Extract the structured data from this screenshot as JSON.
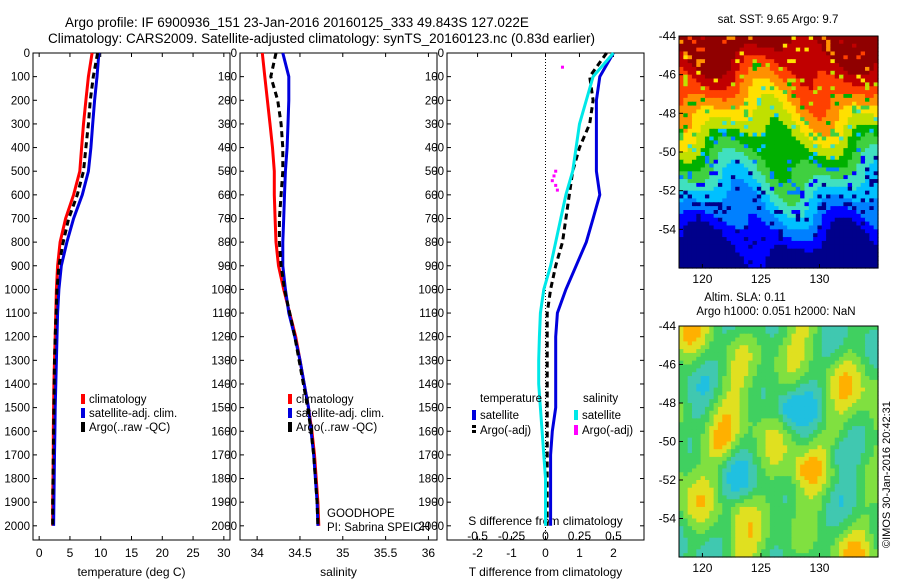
{
  "title": {
    "line1": "Argo profile: IF 6900936_151 23-Jan-2016 20160125_333 49.843S 127.022E",
    "line2": "Climatology: CARS2009. Satellite-adjusted climatology: synTS_20160123.nc (0.83d earlier)"
  },
  "colors": {
    "climatology": "#ff0000",
    "satellite": "#0000dd",
    "argo": "#000000",
    "salinity_satellite": "#00e8e8",
    "salinity_argo": "#ff00ff"
  },
  "depth_axis": {
    "ticks": [
      0,
      100,
      200,
      300,
      400,
      500,
      600,
      700,
      800,
      900,
      1000,
      1100,
      1200,
      1300,
      1400,
      1500,
      1600,
      1700,
      1800,
      1900,
      2000
    ],
    "ylim": [
      0,
      2060
    ]
  },
  "chart_data": [
    {
      "type": "line",
      "xlabel": "temperature (deg C)",
      "xlim": [
        -1,
        31
      ],
      "xticks": [
        0,
        5,
        10,
        15,
        20,
        25,
        30
      ],
      "ylim": [
        0,
        2060
      ],
      "legend": [
        "climatology",
        "satellite-adj. clim.",
        "Argo(..raw -QC)"
      ],
      "series": [
        {
          "name": "climatology",
          "color": "#ff0000",
          "dash": "",
          "x": [
            8.6,
            8.0,
            7.6,
            7.2,
            6.9,
            6.6,
            5.6,
            4.3,
            3.4,
            3.0,
            2.8,
            2.7,
            2.6,
            2.5,
            2.4,
            2.35,
            2.3,
            2.3,
            2.25,
            2.2,
            2.2
          ],
          "y": [
            0,
            100,
            200,
            300,
            400,
            500,
            600,
            700,
            800,
            900,
            1000,
            1100,
            1200,
            1300,
            1400,
            1500,
            1600,
            1700,
            1800,
            1900,
            2000
          ]
        },
        {
          "name": "satellite-adj. clim.",
          "color": "#0000dd",
          "dash": "",
          "x": [
            9.7,
            9.4,
            9.0,
            8.7,
            8.4,
            8.0,
            7.0,
            5.6,
            4.5,
            3.6,
            3.2,
            3.0,
            2.9,
            2.8,
            2.7,
            2.6,
            2.55,
            2.5,
            2.45,
            2.4,
            2.35
          ],
          "y": [
            0,
            100,
            200,
            300,
            400,
            500,
            600,
            700,
            800,
            900,
            1000,
            1100,
            1200,
            1300,
            1400,
            1500,
            1600,
            1700,
            1800,
            1900,
            2000
          ]
        },
        {
          "name": "Argo(..raw -QC)",
          "color": "#000000",
          "dash": "6,4",
          "x": [
            9.5,
            8.8,
            8.3,
            8.0,
            7.6,
            7.2,
            6.2,
            4.8,
            3.9,
            3.2,
            2.9,
            2.75,
            2.6,
            2.5,
            2.45,
            2.4,
            2.35,
            2.3,
            2.25,
            2.2,
            2.2
          ],
          "y": [
            0,
            100,
            200,
            300,
            400,
            500,
            600,
            700,
            800,
            900,
            1000,
            1100,
            1200,
            1300,
            1400,
            1500,
            1600,
            1700,
            1800,
            1900,
            2000
          ]
        }
      ]
    },
    {
      "type": "line",
      "xlabel": "salinity",
      "xlim": [
        33.8,
        36.1
      ],
      "xticks": [
        34,
        34.5,
        35,
        35.5,
        36
      ],
      "xticklabels": [
        "34",
        "34.5",
        "35",
        "35.5",
        "36"
      ],
      "ylim": [
        0,
        2060
      ],
      "legend": [
        "climatology",
        "satellite-adj. clim.",
        "Argo(..raw -QC)"
      ],
      "annotation": [
        "GOODHOPE",
        "PI: Sabrina SPEICH"
      ],
      "series": [
        {
          "name": "climatology",
          "color": "#ff0000",
          "dash": "",
          "x": [
            34.06,
            34.09,
            34.12,
            34.15,
            34.18,
            34.2,
            34.2,
            34.21,
            34.22,
            34.25,
            34.31,
            34.38,
            34.45,
            34.5,
            34.55,
            34.6,
            34.64,
            34.67,
            34.69,
            34.71,
            34.72
          ],
          "y": [
            0,
            100,
            200,
            300,
            400,
            500,
            600,
            700,
            800,
            900,
            1000,
            1100,
            1200,
            1300,
            1400,
            1500,
            1600,
            1700,
            1800,
            1900,
            2000
          ]
        },
        {
          "name": "satellite-adj. clim.",
          "color": "#0000dd",
          "dash": "",
          "x": [
            34.3,
            34.37,
            34.37,
            34.36,
            34.35,
            34.33,
            34.32,
            34.31,
            34.3,
            34.3,
            34.33,
            34.37,
            34.44,
            34.5,
            34.55,
            34.6,
            34.63,
            34.66,
            34.68,
            34.7,
            34.71
          ],
          "y": [
            0,
            100,
            200,
            300,
            400,
            500,
            600,
            700,
            800,
            900,
            1000,
            1100,
            1200,
            1300,
            1400,
            1500,
            1600,
            1700,
            1800,
            1900,
            2000
          ]
        },
        {
          "name": "Argo(..raw -QC)",
          "color": "#000000",
          "dash": "6,4",
          "x": [
            34.22,
            34.16,
            34.24,
            34.28,
            34.3,
            34.3,
            34.28,
            34.26,
            34.26,
            34.28,
            34.32,
            34.38,
            34.44,
            34.49,
            34.54,
            34.59,
            34.63,
            34.66,
            34.68,
            34.7,
            34.71
          ],
          "y": [
            0,
            100,
            200,
            300,
            400,
            500,
            600,
            700,
            800,
            900,
            1000,
            1100,
            1200,
            1300,
            1400,
            1500,
            1600,
            1700,
            1800,
            1900,
            2000
          ]
        }
      ]
    },
    {
      "type": "line",
      "xlabel": "T difference from climatology",
      "xlabel_top": "S difference from climatology",
      "xlim": [
        -2.9,
        2.9
      ],
      "xticks": [
        -2,
        -1,
        0,
        1,
        2
      ],
      "xticks_top": [
        -2,
        -1,
        0,
        1,
        2
      ],
      "xticks_top_labels": [
        "-0.5",
        "-0.25",
        "0",
        "0.25",
        "0.5"
      ],
      "ylim": [
        0,
        2060
      ],
      "legend_titles": [
        "temperature",
        "salinity"
      ],
      "legend": [
        "satellite",
        "Argo(-adj)",
        "satellite",
        "Argo(-adj)"
      ],
      "series": [
        {
          "name": "satellite",
          "color": "#0000dd",
          "dash": "",
          "x": [
            2.0,
            1.6,
            1.5,
            1.5,
            1.5,
            1.5,
            1.6,
            1.4,
            1.2,
            0.9,
            0.6,
            0.35,
            0.3,
            0.3,
            0.3,
            0.3,
            0.2,
            0.15,
            0.15,
            0.15,
            0.15
          ],
          "y": [
            0,
            100,
            200,
            300,
            400,
            500,
            600,
            700,
            800,
            900,
            1000,
            1100,
            1200,
            1300,
            1400,
            1500,
            1600,
            1700,
            1800,
            1900,
            2000
          ]
        },
        {
          "name": "Argo(-adj)",
          "color": "#000000",
          "dash": "6,4",
          "x": [
            1.8,
            1.3,
            1.4,
            1.3,
            1.0,
            0.8,
            0.7,
            0.6,
            0.5,
            0.3,
            0.15,
            0.05,
            0.05,
            0.05,
            0.05,
            0.05,
            0.05,
            0.05,
            0.05,
            0.05,
            0.05
          ],
          "y": [
            0,
            100,
            200,
            300,
            400,
            500,
            600,
            700,
            800,
            900,
            1000,
            1100,
            1200,
            1300,
            1400,
            1500,
            1600,
            1700,
            1800,
            1900,
            2000
          ]
        },
        {
          "name": "satellite",
          "color": "#00e8e8",
          "dash": "",
          "x": [
            2.0,
            1.4,
            1.2,
            1.0,
            0.9,
            0.8,
            0.6,
            0.45,
            0.3,
            0.15,
            -0.05,
            -0.15,
            -0.18,
            -0.2,
            -0.2,
            -0.15,
            -0.1,
            -0.05,
            0.0,
            0.0,
            0.0
          ],
          "y": [
            0,
            100,
            200,
            300,
            400,
            500,
            600,
            700,
            800,
            900,
            1000,
            1100,
            1200,
            1300,
            1400,
            1500,
            1600,
            1700,
            1800,
            1900,
            2000
          ]
        },
        {
          "name": "Argo(-adj)",
          "color": "#ff00ff",
          "dash": "",
          "x": [
            0.5,
            0.3,
            0.25,
            0.2,
            0.3,
            0.35
          ],
          "y": [
            60,
            500,
            520,
            540,
            560,
            580
          ],
          "points": true
        }
      ]
    },
    {
      "type": "heatmap",
      "title": "sat. SST: 9.65 Argo: 9.7",
      "xlim": [
        118,
        135
      ],
      "ylim": [
        -56,
        -44
      ],
      "xticks": [
        120,
        125,
        130
      ],
      "yticks": [
        -44,
        -46,
        -48,
        -50,
        -52,
        -54
      ],
      "colorscale": [
        "#00008b",
        "#0000ff",
        "#0080ff",
        "#00c0ff",
        "#40e0c0",
        "#40d040",
        "#00b000",
        "#c0e000",
        "#ffe000",
        "#ff9000",
        "#ff4000",
        "#c00000",
        "#900000"
      ]
    },
    {
      "type": "heatmap",
      "title_lines": [
        "Altim. SLA: 0.11",
        "Argo h1000: 0.051 h2000: NaN"
      ],
      "xlim": [
        118,
        135
      ],
      "ylim": [
        -56,
        -44
      ],
      "xticks": [
        120,
        125,
        130
      ],
      "yticks": [
        -44,
        -46,
        -48,
        -50,
        -52,
        -54
      ],
      "colorscale": [
        "#20c0e0",
        "#40c8b0",
        "#40d060",
        "#80e040",
        "#e0e020",
        "#ffb000",
        "#ff6000"
      ]
    }
  ],
  "watermark": "©IMOS 30-Jan-2016 20:42:31"
}
